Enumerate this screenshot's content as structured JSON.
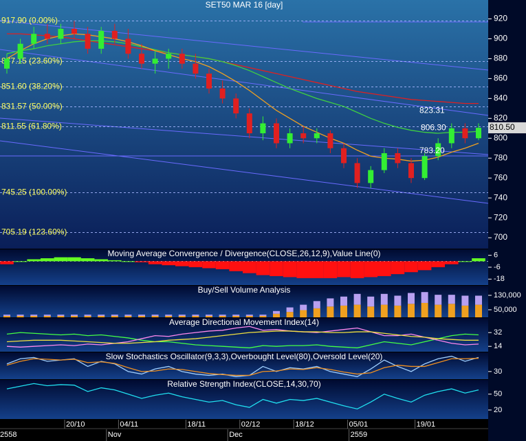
{
  "chart_data": [
    {
      "type": "candlestick",
      "title": "SET50 MAR 16   [day]",
      "categories": [
        null,
        null,
        null,
        null,
        null,
        "20/10",
        null,
        null,
        null,
        "04/11",
        null,
        null,
        null,
        null,
        "18/11",
        null,
        null,
        null,
        "02/12",
        null,
        null,
        null,
        "18/12",
        null,
        null,
        null,
        "05/01",
        null,
        null,
        null,
        null,
        "19/01",
        null,
        null,
        null,
        null
      ],
      "periods": [
        "2558",
        null,
        null,
        null,
        null,
        null,
        null,
        null,
        "Nov",
        null,
        null,
        null,
        null,
        null,
        null,
        null,
        null,
        "Dec",
        null,
        null,
        null,
        null,
        null,
        null,
        null,
        null,
        "2559",
        null,
        null,
        null,
        null,
        null,
        null,
        null,
        null,
        null
      ],
      "open": [
        870,
        880,
        895,
        905,
        900,
        910,
        905,
        890,
        908,
        900,
        885,
        875,
        880,
        885,
        875,
        865,
        850,
        840,
        825,
        805,
        815,
        795,
        805,
        800,
        805,
        790,
        775,
        755,
        768,
        785,
        775,
        760,
        782,
        795,
        810,
        800
      ],
      "high": [
        885,
        900,
        912,
        915,
        915,
        918,
        912,
        912,
        915,
        910,
        895,
        888,
        890,
        890,
        885,
        870,
        858,
        845,
        830,
        822,
        820,
        810,
        812,
        810,
        808,
        795,
        780,
        772,
        790,
        790,
        780,
        785,
        800,
        815,
        815,
        815
      ],
      "low": [
        865,
        875,
        890,
        895,
        895,
        900,
        885,
        885,
        895,
        880,
        870,
        865,
        870,
        870,
        860,
        845,
        835,
        820,
        800,
        798,
        790,
        790,
        795,
        795,
        785,
        770,
        750,
        750,
        765,
        770,
        755,
        758,
        778,
        790,
        795,
        798
      ],
      "close": [
        880,
        895,
        905,
        900,
        910,
        905,
        890,
        908,
        900,
        885,
        875,
        880,
        885,
        875,
        865,
        850,
        840,
        825,
        805,
        815,
        795,
        805,
        800,
        805,
        790,
        775,
        755,
        768,
        785,
        775,
        760,
        782,
        795,
        810,
        800,
        810.5
      ],
      "up_color": "#33ee33",
      "down_color": "#e02020",
      "series": [
        {
          "color": "#e02020",
          "values": [
            905,
            905,
            904,
            903,
            902,
            900,
            898,
            896,
            894,
            892,
            890,
            888,
            886,
            884,
            882,
            880,
            877,
            874,
            871,
            868,
            865,
            862,
            859,
            856,
            853,
            850,
            847,
            845,
            843,
            841,
            839,
            838,
            837,
            836,
            835,
            835
          ]
        },
        {
          "color": "#40d040",
          "values": [
            885,
            888,
            890,
            893,
            895,
            897,
            898,
            898,
            897,
            895,
            892,
            889,
            886,
            884,
            882,
            880,
            877,
            873,
            868,
            862,
            856,
            850,
            845,
            840,
            836,
            832,
            826,
            820,
            815,
            811,
            808,
            806,
            805,
            806,
            806,
            807
          ]
        },
        {
          "color": "#f0a020",
          "values": [
            880,
            888,
            895,
            900,
            903,
            905,
            904,
            902,
            900,
            897,
            893,
            888,
            884,
            880,
            877,
            872,
            865,
            857,
            848,
            838,
            828,
            820,
            812,
            806,
            800,
            795,
            788,
            782,
            780,
            779,
            777,
            778,
            781,
            786,
            790,
            795
          ]
        }
      ],
      "levels": [
        {
          "value": 917.9,
          "label": "917.90 (0.00%)"
        },
        {
          "value": 877.15,
          "label": "877.15 (23.60%)"
        },
        {
          "value": 851.6,
          "label": "851.60 (38.20%)"
        },
        {
          "value": 831.57,
          "label": "831.57 (50.00%)"
        },
        {
          "value": 811.55,
          "label": "811.55 (61.80%)"
        },
        {
          "value": 745.25,
          "label": "745.25 (100.00%)"
        },
        {
          "value": 705.19,
          "label": "705.19 (123.60%)"
        }
      ],
      "annotations": [
        {
          "value": 823.31,
          "label": "823.31"
        },
        {
          "value": 806.3,
          "label": "806.30"
        },
        {
          "value": 783.2,
          "label": "783.20"
        }
      ],
      "last": {
        "value": 810.5,
        "label": "810.50"
      },
      "ylim": [
        689,
        939
      ],
      "yticks": [
        700,
        720,
        740,
        760,
        780,
        800,
        820,
        840,
        860,
        880,
        900,
        920
      ]
    },
    {
      "type": "bar",
      "title": "Moving Average Convergence / Divergence(CLOSE,26,12,9),Value Line(0)",
      "values": [
        -3,
        0,
        2,
        3,
        4,
        4,
        3,
        2,
        1,
        0,
        -1,
        -3,
        -4,
        -5,
        -6,
        -7,
        -8,
        -10,
        -12,
        -14,
        -15,
        -16,
        -17,
        -17,
        -17,
        -16,
        -17,
        -16,
        -15,
        -13,
        -11,
        -9,
        -6,
        -3,
        0,
        3
      ],
      "up_color": "#66ff22",
      "down_color": "#ff1010",
      "ylim": [
        -24,
        12
      ],
      "yticks": [
        6,
        -6,
        -18
      ]
    },
    {
      "type": "stacked_bar",
      "title": "Buy/Sell Volume Analysis",
      "series": [
        {
          "color": "#f0a020",
          "values": [
            8000,
            8000,
            8000,
            8000,
            8000,
            8000,
            8000,
            8000,
            8000,
            8000,
            8000,
            8000,
            8000,
            8000,
            8000,
            8000,
            8000,
            8000,
            8000,
            8000,
            20000,
            30000,
            40000,
            50000,
            60000,
            65000,
            70000,
            60000,
            70000,
            65000,
            75000,
            80000,
            70000,
            75000,
            65000,
            70000
          ]
        },
        {
          "color": "#b8a0f0",
          "values": [
            7000,
            7000,
            7000,
            7000,
            7000,
            7000,
            7000,
            7000,
            7000,
            7000,
            7000,
            7000,
            7000,
            7000,
            7000,
            7000,
            7000,
            7000,
            7000,
            7000,
            15000,
            25000,
            30000,
            40000,
            45000,
            50000,
            60000,
            55000,
            60000,
            55000,
            60000,
            60000,
            55000,
            50000,
            55000,
            50000
          ]
        }
      ],
      "ylim": [
        8000,
        183000
      ],
      "yticks": [
        {
          "value": 130000,
          "label": "130,000"
        },
        {
          "value": 50000,
          "label": "50,000"
        }
      ]
    },
    {
      "type": "line",
      "title": "Average Directional Movement Index(14)",
      "series": [
        {
          "color": "#44ff44",
          "values": [
            30,
            32,
            31,
            30,
            29,
            30,
            28,
            29,
            27,
            25,
            22,
            20,
            20,
            18,
            16,
            15,
            14,
            13,
            12,
            15,
            14,
            15,
            15,
            16,
            14,
            13,
            12,
            16,
            20,
            18,
            16,
            20,
            24,
            28,
            30,
            29
          ]
        },
        {
          "color": "#ff88ee",
          "values": [
            14,
            13,
            14,
            15,
            16,
            15,
            17,
            16,
            18,
            20,
            24,
            28,
            27,
            30,
            32,
            34,
            35,
            38,
            40,
            35,
            36,
            34,
            33,
            32,
            34,
            36,
            38,
            33,
            28,
            28,
            30,
            26,
            22,
            18,
            16,
            17
          ]
        },
        {
          "color": "#f0e040",
          "values": [
            20,
            21,
            22,
            22,
            22,
            21,
            20,
            19,
            18,
            18,
            19,
            20,
            22,
            23,
            24,
            26,
            28,
            30,
            32,
            33,
            34,
            34,
            33,
            33,
            32,
            32,
            33,
            33,
            31,
            29,
            27,
            26,
            24,
            23,
            22,
            22
          ]
        }
      ],
      "ylim": [
        7,
        51
      ],
      "yticks": [
        32,
        14
      ]
    },
    {
      "type": "line",
      "title": "Slow Stochastics Oscillator(9,3,3),Overbought Level(80),Oversold Level(20)",
      "series": [
        {
          "color": "#a0d0ff",
          "values": [
            60,
            80,
            85,
            70,
            75,
            80,
            50,
            70,
            60,
            30,
            20,
            40,
            50,
            30,
            20,
            15,
            20,
            10,
            15,
            50,
            30,
            45,
            40,
            50,
            30,
            20,
            10,
            40,
            75,
            50,
            30,
            60,
            80,
            90,
            70,
            85
          ]
        },
        {
          "color": "#f09020",
          "values": [
            55,
            70,
            80,
            78,
            75,
            78,
            65,
            68,
            62,
            45,
            30,
            32,
            40,
            38,
            30,
            22,
            18,
            15,
            15,
            30,
            32,
            40,
            38,
            45,
            38,
            28,
            20,
            25,
            45,
            55,
            50,
            50,
            65,
            80,
            80,
            82
          ]
        }
      ],
      "ylim": [
        0,
        105
      ],
      "yticks": [
        30
      ]
    },
    {
      "type": "line",
      "title": "Relative Strength Index(CLOSE,14,30,70)",
      "series": [
        {
          "color": "#20e0f0",
          "values": [
            60,
            65,
            70,
            66,
            68,
            67,
            55,
            62,
            58,
            50,
            42,
            48,
            52,
            45,
            40,
            35,
            38,
            30,
            25,
            40,
            33,
            40,
            38,
            42,
            35,
            28,
            22,
            35,
            50,
            42,
            35,
            48,
            55,
            60,
            52,
            58
          ]
        }
      ],
      "ylim": [
        3,
        77
      ],
      "yticks": [
        50,
        20
      ]
    }
  ]
}
